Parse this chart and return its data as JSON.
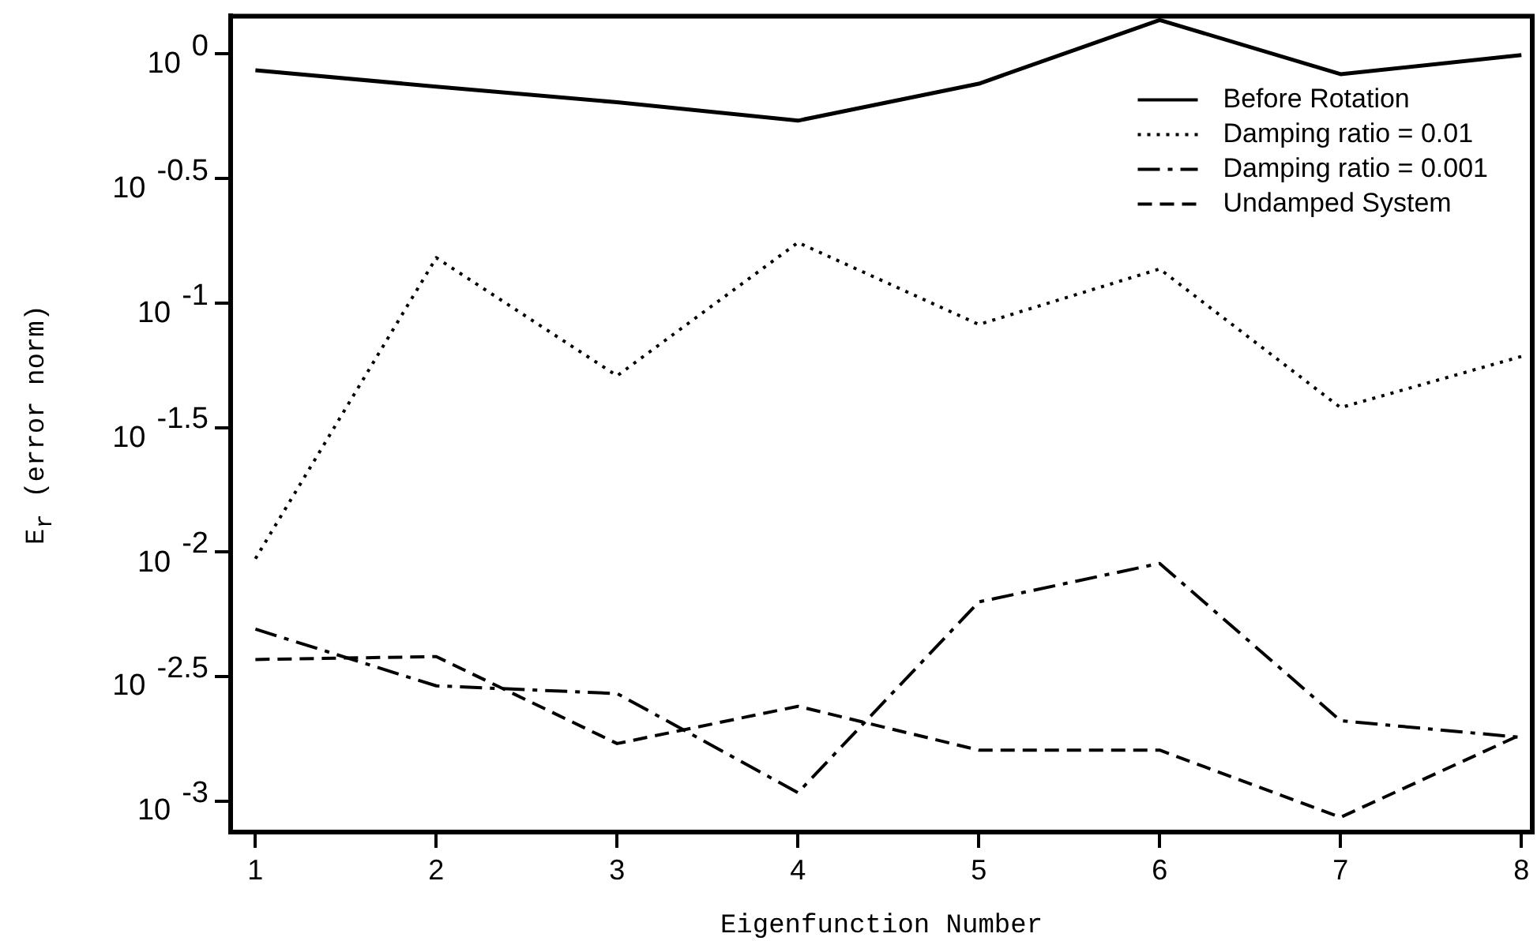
{
  "chart_data": {
    "type": "line",
    "xlabel": "Eigenfunction Number",
    "ylabel": "E$_{r}$ (error norm)",
    "x": [
      1,
      2,
      3,
      4,
      5,
      6,
      7,
      8
    ],
    "series": [
      {
        "name": "Before Rotation",
        "color": "#000000",
        "line_style": "solid",
        "values": [
          0.86,
          0.74,
          0.64,
          0.54,
          0.76,
          1.37,
          0.83,
          0.99
        ]
      },
      {
        "name": "Damping ratio = 0.01",
        "color": "#000000",
        "line_style": "dotted",
        "values": [
          0.0094,
          0.152,
          0.051,
          0.175,
          0.082,
          0.137,
          0.038,
          0.061
        ]
      },
      {
        "name": "Damping ratio = 0.001",
        "color": "#000000",
        "line_style": "dashed",
        "values": [
          0.0049,
          0.0029,
          0.0027,
          0.00108,
          0.0063,
          0.009,
          0.0021,
          0.0018
        ]
      },
      {
        "name": "Undamped System",
        "color": "#000000",
        "line_style": "dashed",
        "values": [
          0.0037,
          0.0038,
          0.0017,
          0.0024,
          0.0016,
          0.0016,
          0.00086,
          0.00185
        ]
      }
    ],
    "log": "y",
    "xlim": [
      0.863,
      8.06
    ],
    "xticks": [
      1,
      2,
      3,
      4,
      5,
      6,
      7,
      8
    ],
    "ylim": [
      0.00075,
      1.42
    ],
    "yticks": [
      {
        "value": 1,
        "label": "10$^{0}$"
      },
      {
        "value": 0.3162,
        "label": "10$^{-0.5}$"
      },
      {
        "value": 0.1,
        "label": "10$^{-1}$"
      },
      {
        "value": 0.03162,
        "label": "10$^{-1.5}$"
      },
      {
        "value": 0.01,
        "label": "10$^{-2}$"
      },
      {
        "value": 0.003162,
        "label": "10$^{-2.5}$"
      },
      {
        "value": 0.001,
        "label": "10$^{-3}$"
      }
    ],
    "grid": false,
    "legend": "top right",
    "marker": "none"
  }
}
